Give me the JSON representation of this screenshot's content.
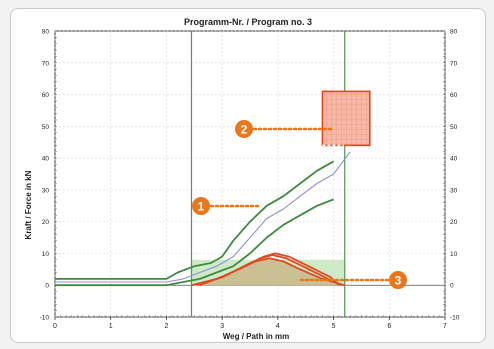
{
  "chart_data": {
    "type": "line",
    "title": "Programm-Nr. / Program no. 3",
    "xlabel": "Weg / Path in mm",
    "ylabel": "Kraft / Force in kN",
    "xlim": [
      0,
      7
    ],
    "ylim": [
      -10,
      80
    ],
    "y2lim": [
      -10,
      80
    ],
    "x_ticks": [
      0,
      1,
      2,
      3,
      4,
      5,
      6,
      7
    ],
    "y_ticks": [
      -10,
      0,
      10,
      20,
      30,
      40,
      50,
      60,
      70,
      80
    ],
    "x_tick_labels": [
      "0",
      "1",
      "2",
      "3",
      "4",
      "5",
      "6",
      "7"
    ],
    "y_tick_labels": [
      "-10",
      "0",
      "10",
      "20",
      "30",
      "40",
      "50",
      "60",
      "70",
      "80"
    ],
    "y2_tick_labels": [
      "-10",
      "0",
      "10",
      "20",
      "30",
      "40",
      "50",
      "60",
      "70",
      "80"
    ],
    "grid": true,
    "vertical_markers": [
      2.45,
      5.2
    ],
    "series": [
      {
        "color": "#3f8a3f",
        "x": [
          0,
          1,
          2,
          2.2,
          2.5,
          2.8,
          3.0,
          3.2,
          3.5,
          3.8,
          4.1,
          4.4,
          4.7,
          5.0
        ],
        "y": [
          2,
          2,
          2,
          4,
          6,
          7,
          9,
          14,
          20,
          25,
          28,
          32,
          36,
          39
        ]
      },
      {
        "color": "#8f8fd6",
        "x": [
          0,
          1,
          2,
          2.3,
          2.6,
          2.9,
          3.2,
          3.5,
          3.8,
          4.1,
          4.4,
          4.7,
          5.0,
          5.3
        ],
        "y": [
          1,
          1,
          1,
          2,
          4,
          6,
          9,
          15,
          21,
          24,
          28,
          32,
          35,
          42
        ]
      },
      {
        "color": "#3f8a3f",
        "x": [
          0,
          1,
          2,
          2.3,
          2.6,
          2.9,
          3.2,
          3.5,
          3.8,
          4.1,
          4.4,
          4.7,
          5.0
        ],
        "y": [
          0,
          0,
          0,
          1,
          2,
          4,
          6,
          10,
          15,
          19,
          22,
          25,
          27
        ]
      },
      {
        "color": "#e0491f",
        "x": [
          2.45,
          2.9,
          3.3,
          3.6,
          3.85,
          4.1,
          4.4,
          4.8,
          5.2
        ],
        "y": [
          0,
          2,
          5,
          7.5,
          8.5,
          7.5,
          5,
          2,
          0
        ]
      },
      {
        "color": "#e0491f",
        "x": [
          2.55,
          3.0,
          3.4,
          3.7,
          3.9,
          4.15,
          4.5,
          4.9,
          5.15
        ],
        "y": [
          0,
          2.5,
          6,
          8.5,
          9.5,
          8.5,
          5.5,
          2,
          0
        ]
      },
      {
        "color": "#e0491f",
        "x": [
          2.6,
          3.05,
          3.45,
          3.75,
          3.95,
          4.2,
          4.55,
          4.95,
          5.1
        ],
        "y": [
          0,
          3,
          6.5,
          9,
          10,
          9,
          6,
          2.5,
          0
        ]
      }
    ],
    "tolerance_band": {
      "color": "#bfe3b4",
      "x": [
        2.45,
        5.2
      ],
      "y": [
        0,
        8
      ]
    },
    "target_window": {
      "color": "#f27b5e",
      "x": [
        4.8,
        5.65
      ],
      "y": [
        44,
        61
      ]
    },
    "callouts": [
      {
        "label": "1",
        "color": "#e8771e"
      },
      {
        "label": "2",
        "color": "#e8771e"
      },
      {
        "label": "3",
        "color": "#e8771e"
      }
    ]
  }
}
